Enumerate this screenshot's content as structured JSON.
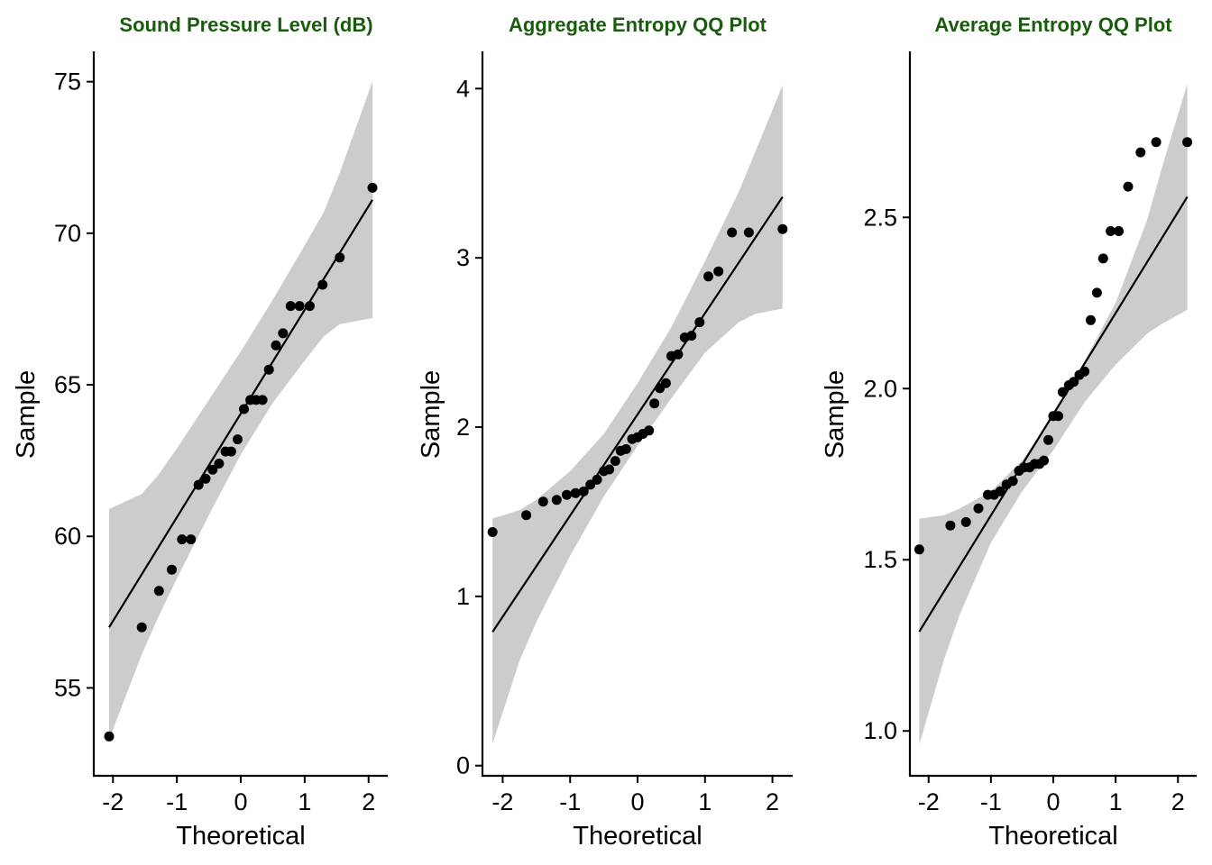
{
  "colors": {
    "title": "#1a5c0e",
    "band": "#cccccc",
    "line": "#000000",
    "point": "#000000"
  },
  "chart_data": [
    {
      "type": "scatter",
      "title": "Sound Pressure Level (dB)",
      "xlabel": "Theoretical",
      "ylabel": "Sample",
      "xlim": [
        -2.3,
        2.3
      ],
      "ylim": [
        52.1,
        76.0
      ],
      "xticks": [
        -2,
        -1,
        0,
        1,
        2
      ],
      "yticks": [
        55,
        60,
        65,
        70,
        75
      ],
      "xtick_labels": [
        "-2",
        "-1",
        "0",
        "1",
        "2"
      ],
      "ytick_labels": [
        "55",
        "60",
        "65",
        "70",
        "75"
      ],
      "reference_line": {
        "x": [
          -2.06,
          2.06
        ],
        "y": [
          57.0,
          71.1
        ]
      },
      "confidence_band": {
        "x": [
          -2.06,
          -1.55,
          -1.3,
          -1.0,
          -0.5,
          0,
          0.5,
          1.0,
          1.3,
          1.55,
          2.06
        ],
        "lower": [
          53.3,
          56.1,
          57.3,
          58.6,
          60.7,
          62.7,
          64.4,
          65.8,
          66.6,
          67.0,
          67.2
        ],
        "upper": [
          60.9,
          61.4,
          62.0,
          62.9,
          64.5,
          66.1,
          67.8,
          69.6,
          70.7,
          72.0,
          75.0
        ]
      },
      "points": {
        "x": [
          -2.06,
          -1.55,
          -1.28,
          -1.08,
          -0.92,
          -0.78,
          -0.66,
          -0.55,
          -0.44,
          -0.34,
          -0.24,
          -0.15,
          -0.05,
          0.05,
          0.15,
          0.24,
          0.34,
          0.44,
          0.55,
          0.66,
          0.78,
          0.92,
          1.08,
          1.28,
          1.55,
          2.06
        ],
        "y": [
          53.4,
          57.0,
          58.2,
          58.9,
          59.9,
          59.9,
          61.7,
          61.9,
          62.2,
          62.4,
          62.8,
          62.8,
          63.2,
          64.2,
          64.5,
          64.5,
          64.5,
          65.5,
          66.3,
          66.7,
          67.6,
          67.6,
          67.6,
          68.3,
          69.2,
          71.5
        ]
      }
    },
    {
      "type": "scatter",
      "title": "Aggregate Entropy QQ Plot",
      "xlabel": "Theoretical",
      "ylabel": "Sample",
      "xlim": [
        -2.3,
        2.3
      ],
      "ylim": [
        -0.06,
        4.22
      ],
      "xticks": [
        -2,
        -1,
        0,
        1,
        2
      ],
      "yticks": [
        0,
        1,
        2,
        3,
        4
      ],
      "xtick_labels": [
        "-2",
        "-1",
        "0",
        "1",
        "2"
      ],
      "ytick_labels": [
        "0",
        "1",
        "2",
        "3",
        "4"
      ],
      "reference_line": {
        "x": [
          -2.15,
          2.15
        ],
        "y": [
          0.79,
          3.36
        ]
      },
      "confidence_band": {
        "x": [
          -2.15,
          -1.75,
          -1.5,
          -1.0,
          -0.5,
          0,
          0.5,
          1.0,
          1.5,
          1.75,
          2.15
        ],
        "lower": [
          0.13,
          0.62,
          0.85,
          1.24,
          1.59,
          1.89,
          2.17,
          2.44,
          2.62,
          2.67,
          2.7
        ],
        "upper": [
          1.46,
          1.51,
          1.57,
          1.74,
          1.96,
          2.26,
          2.59,
          2.98,
          3.39,
          3.63,
          4.02
        ]
      },
      "points": {
        "x": [
          -2.15,
          -1.65,
          -1.4,
          -1.2,
          -1.05,
          -0.92,
          -0.8,
          -0.7,
          -0.6,
          -0.5,
          -0.42,
          -0.33,
          -0.25,
          -0.17,
          -0.08,
          0,
          0.08,
          0.17,
          0.25,
          0.33,
          0.42,
          0.5,
          0.6,
          0.7,
          0.8,
          0.92,
          1.05,
          1.2,
          1.4,
          1.65,
          2.15
        ],
        "y": [
          1.38,
          1.48,
          1.56,
          1.57,
          1.6,
          1.61,
          1.62,
          1.66,
          1.69,
          1.74,
          1.75,
          1.8,
          1.86,
          1.87,
          1.93,
          1.94,
          1.96,
          1.98,
          2.14,
          2.23,
          2.26,
          2.42,
          2.43,
          2.53,
          2.54,
          2.62,
          2.89,
          2.92,
          3.15,
          3.15,
          3.17
        ]
      }
    },
    {
      "type": "scatter",
      "title": "Average Entropy QQ Plot",
      "xlabel": "Theoretical",
      "ylabel": "Sample",
      "xlim": [
        -2.3,
        2.3
      ],
      "ylim": [
        0.869,
        2.985
      ],
      "xticks": [
        -2,
        -1,
        0,
        1,
        2
      ],
      "yticks": [
        1.0,
        1.5,
        2.0,
        2.5
      ],
      "xtick_labels": [
        "-2",
        "-1",
        "0",
        "1",
        "2"
      ],
      "ytick_labels": [
        "1.0",
        "1.5",
        "2.0",
        "2.5"
      ],
      "reference_line": {
        "x": [
          -2.15,
          2.15
        ],
        "y": [
          1.29,
          2.56
        ]
      },
      "confidence_band": {
        "x": [
          -2.15,
          -1.75,
          -1.5,
          -1.0,
          -0.5,
          0,
          0.5,
          1.0,
          1.5,
          1.75,
          2.15
        ],
        "lower": [
          0.96,
          1.21,
          1.34,
          1.55,
          1.7,
          1.82,
          1.96,
          2.07,
          2.16,
          2.19,
          2.23
        ],
        "upper": [
          1.62,
          1.63,
          1.65,
          1.7,
          1.79,
          1.92,
          2.08,
          2.25,
          2.49,
          2.65,
          2.89
        ]
      },
      "points": {
        "x": [
          -2.15,
          -1.65,
          -1.4,
          -1.2,
          -1.05,
          -0.95,
          -0.85,
          -0.75,
          -0.65,
          -0.55,
          -0.47,
          -0.38,
          -0.3,
          -0.22,
          -0.15,
          -0.08,
          0,
          0.08,
          0.15,
          0.25,
          0.33,
          0.42,
          0.5,
          0.6,
          0.7,
          0.8,
          0.92,
          1.05,
          1.2,
          1.4,
          1.65,
          2.15
        ],
        "y": [
          1.53,
          1.6,
          1.61,
          1.65,
          1.69,
          1.69,
          1.7,
          1.72,
          1.73,
          1.76,
          1.77,
          1.77,
          1.78,
          1.78,
          1.79,
          1.85,
          1.92,
          1.92,
          1.99,
          2.01,
          2.02,
          2.04,
          2.05,
          2.2,
          2.28,
          2.38,
          2.46,
          2.46,
          2.59,
          2.69,
          2.72,
          2.72
        ]
      }
    }
  ]
}
